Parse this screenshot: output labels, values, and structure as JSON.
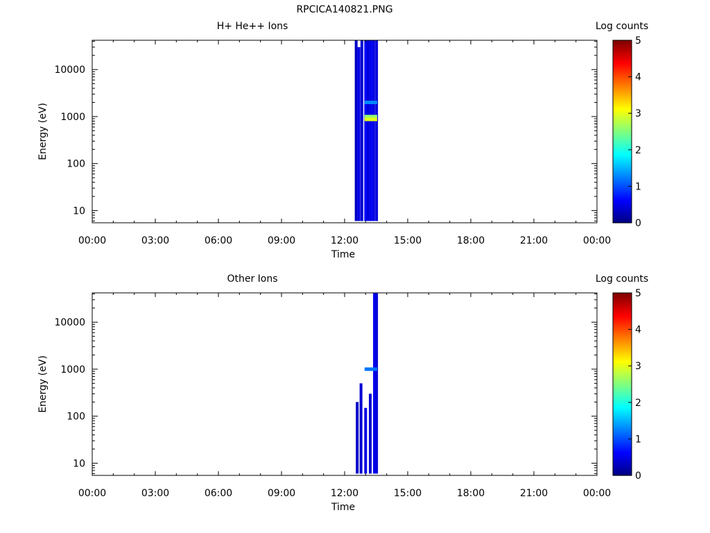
{
  "title": "RPCICA140821.PNG",
  "colormap": [
    "#00007f",
    "#0000ff",
    "#007fff",
    "#00ffff",
    "#7fff7f",
    "#ffff00",
    "#ff7f00",
    "#ff0000",
    "#7f0000"
  ],
  "chart_data": [
    {
      "type": "heatmap",
      "title": "H+ He++ Ions",
      "xlabel": "Time",
      "ylabel": "Energy (eV)",
      "x_ticks": [
        "00:00",
        "03:00",
        "06:00",
        "09:00",
        "12:00",
        "15:00",
        "18:00",
        "21:00",
        "00:00"
      ],
      "x_range_hours": [
        0,
        24
      ],
      "y_scale": "log",
      "y_range": [
        5.5,
        42000
      ],
      "y_ticks": [
        10,
        100,
        1000,
        10000
      ],
      "colorbar": {
        "label": "Log counts",
        "range": [
          0,
          5
        ],
        "ticks": [
          "0",
          "1",
          "2",
          "3",
          "4",
          "5"
        ]
      },
      "active_interval_hours": [
        12.5,
        13.6
      ],
      "columns": [
        {
          "t": 12.55,
          "e_min": 6,
          "e_max": 42000,
          "level": 0.35
        },
        {
          "t": 12.68,
          "e_min": 6,
          "e_max": 30000,
          "level": 0.5
        },
        {
          "t": 12.82,
          "e_min": 6,
          "e_max": 42000,
          "level": 0.4
        },
        {
          "t": 13.0,
          "e_min": 6,
          "e_max": 42000,
          "level": 0.6
        },
        {
          "t": 13.12,
          "e_min": 6,
          "e_max": 42000,
          "level": 0.45
        },
        {
          "t": 13.25,
          "e_min": 6,
          "e_max": 42000,
          "level": 0.55
        },
        {
          "t": 13.38,
          "e_min": 6,
          "e_max": 42000,
          "level": 0.5
        },
        {
          "t": 13.52,
          "e_min": 6,
          "e_max": 42000,
          "level": 0.45
        }
      ],
      "peaks": [
        {
          "t0": 12.95,
          "t1": 13.55,
          "e": 1000,
          "level": 2.6
        },
        {
          "t0": 12.95,
          "t1": 13.55,
          "e": 870,
          "level": 3.0
        },
        {
          "t0": 12.95,
          "t1": 13.55,
          "e": 2000,
          "level": 1.3
        }
      ]
    },
    {
      "type": "heatmap",
      "title": "Other Ions",
      "xlabel": "Time",
      "ylabel": "Energy (eV)",
      "x_ticks": [
        "00:00",
        "03:00",
        "06:00",
        "09:00",
        "12:00",
        "15:00",
        "18:00",
        "21:00",
        "00:00"
      ],
      "x_range_hours": [
        0,
        24
      ],
      "y_scale": "log",
      "y_range": [
        5.5,
        42000
      ],
      "y_ticks": [
        10,
        100,
        1000,
        10000
      ],
      "colorbar": {
        "label": "Log counts",
        "range": [
          0,
          5
        ],
        "ticks": [
          "0",
          "1",
          "2",
          "3",
          "4",
          "5"
        ]
      },
      "active_interval_hours": [
        12.5,
        13.6
      ],
      "columns": [
        {
          "t": 12.6,
          "e_min": 6,
          "e_max": 200,
          "level": 0.35
        },
        {
          "t": 12.78,
          "e_min": 6,
          "e_max": 500,
          "level": 0.4
        },
        {
          "t": 13.0,
          "e_min": 6,
          "e_max": 150,
          "level": 0.5
        },
        {
          "t": 13.22,
          "e_min": 6,
          "e_max": 300,
          "level": 0.4
        },
        {
          "t": 13.42,
          "e_min": 6,
          "e_max": 42000,
          "level": 0.55
        },
        {
          "t": 13.52,
          "e_min": 6,
          "e_max": 42000,
          "level": 0.45
        }
      ],
      "peaks": [
        {
          "t0": 12.95,
          "t1": 13.55,
          "e": 1000,
          "level": 1.2
        }
      ]
    }
  ]
}
